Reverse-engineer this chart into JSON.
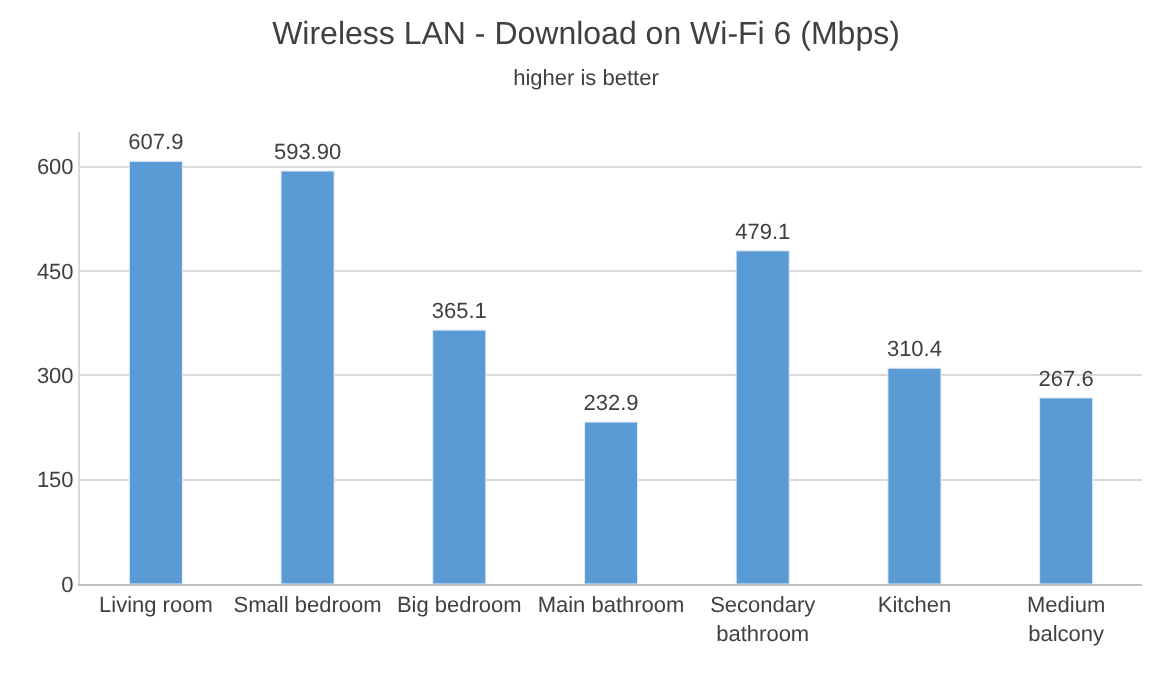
{
  "chart_data": {
    "type": "bar",
    "title": "Wireless LAN - Download on Wi-Fi 6 (Mbps)",
    "subtitle": "higher is better",
    "categories": [
      "Living room",
      "Small bedroom",
      "Big bedroom",
      "Main bathroom",
      "Secondary bathroom",
      "Kitchen",
      "Medium balcony"
    ],
    "values": [
      607.9,
      593.9,
      365.1,
      232.9,
      479.1,
      310.4,
      267.6
    ],
    "value_labels": [
      "607.9",
      "593.90",
      "365.1",
      "232.9",
      "479.1",
      "310.4",
      "267.6"
    ],
    "color": "#5b9bd5",
    "ylim": [
      0,
      650
    ],
    "yticks": [
      0,
      150,
      300,
      450,
      600
    ],
    "grid": "y",
    "legend": false
  }
}
